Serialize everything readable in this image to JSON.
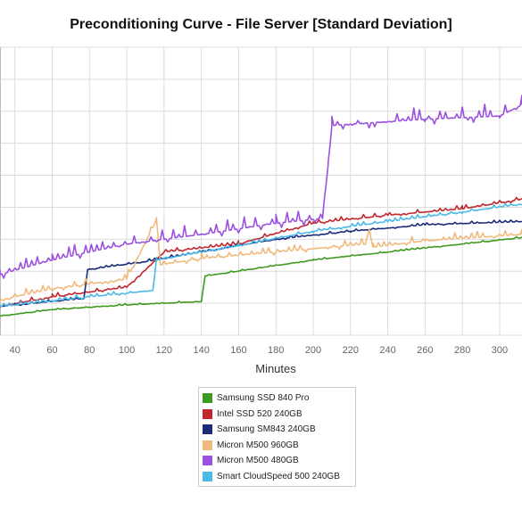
{
  "chart_data": {
    "type": "line",
    "title": "Preconditioning Curve - File Server [Standard Deviation]",
    "xlabel": "Minutes",
    "ylabel": "",
    "xlim": [
      32,
      312
    ],
    "ylim": [
      0,
      9
    ],
    "x_ticks": [
      "40",
      "60",
      "80",
      "100",
      "120",
      "140",
      "160",
      "180",
      "200",
      "220",
      "240",
      "260",
      "280",
      "300"
    ],
    "grid": true,
    "legend_position": "bottom-center",
    "series": [
      {
        "name": "Samsung SSD 840 Pro",
        "color": "#3d9a1e",
        "points": [
          [
            32,
            0.6
          ],
          [
            60,
            0.8
          ],
          [
            100,
            0.95
          ],
          [
            140,
            1.05
          ],
          [
            142,
            1.85
          ],
          [
            200,
            2.35
          ],
          [
            240,
            2.6
          ],
          [
            280,
            2.85
          ],
          [
            312,
            3.05
          ]
        ]
      },
      {
        "name": "Intel SSD 520 240GB",
        "color": "#c2272d",
        "points": [
          [
            32,
            0.9
          ],
          [
            60,
            1.2
          ],
          [
            100,
            1.5
          ],
          [
            120,
            2.6
          ],
          [
            160,
            2.85
          ],
          [
            200,
            3.5
          ],
          [
            240,
            3.75
          ],
          [
            280,
            3.95
          ],
          [
            312,
            4.25
          ]
        ]
      },
      {
        "name": "Samsung SM843 240GB",
        "color": "#1a2b7a",
        "points": [
          [
            32,
            0.9
          ],
          [
            77,
            1.15
          ],
          [
            79,
            2.05
          ],
          [
            110,
            2.3
          ],
          [
            140,
            2.6
          ],
          [
            180,
            3.0
          ],
          [
            220,
            3.25
          ],
          [
            260,
            3.45
          ],
          [
            312,
            3.55
          ]
        ]
      },
      {
        "name": "Micron M500 960GB",
        "color": "#f0ba7c",
        "points": [
          [
            32,
            1.1
          ],
          [
            60,
            1.45
          ],
          [
            100,
            1.75
          ],
          [
            116,
            3.6
          ],
          [
            118,
            2.2
          ],
          [
            140,
            2.4
          ],
          [
            180,
            2.6
          ],
          [
            228,
            2.85
          ],
          [
            230,
            3.3
          ],
          [
            232,
            2.75
          ],
          [
            260,
            2.95
          ],
          [
            312,
            3.15
          ]
        ]
      },
      {
        "name": "Micron M500 480GB",
        "color": "#9b51e0",
        "points": [
          [
            32,
            1.9
          ],
          [
            60,
            2.35
          ],
          [
            100,
            2.85
          ],
          [
            140,
            3.15
          ],
          [
            180,
            3.5
          ],
          [
            205,
            3.65
          ],
          [
            208,
            5.3
          ],
          [
            210,
            6.55
          ],
          [
            220,
            6.6
          ],
          [
            260,
            6.75
          ],
          [
            300,
            6.85
          ],
          [
            312,
            7.2
          ]
        ]
      },
      {
        "name": "Smart CloudSpeed 500 240GB",
        "color": "#4bb9e8",
        "points": [
          [
            32,
            0.9
          ],
          [
            80,
            1.2
          ],
          [
            114,
            1.4
          ],
          [
            116,
            2.35
          ],
          [
            160,
            2.8
          ],
          [
            200,
            3.25
          ],
          [
            240,
            3.55
          ],
          [
            280,
            3.85
          ],
          [
            312,
            4.1
          ]
        ]
      }
    ]
  }
}
